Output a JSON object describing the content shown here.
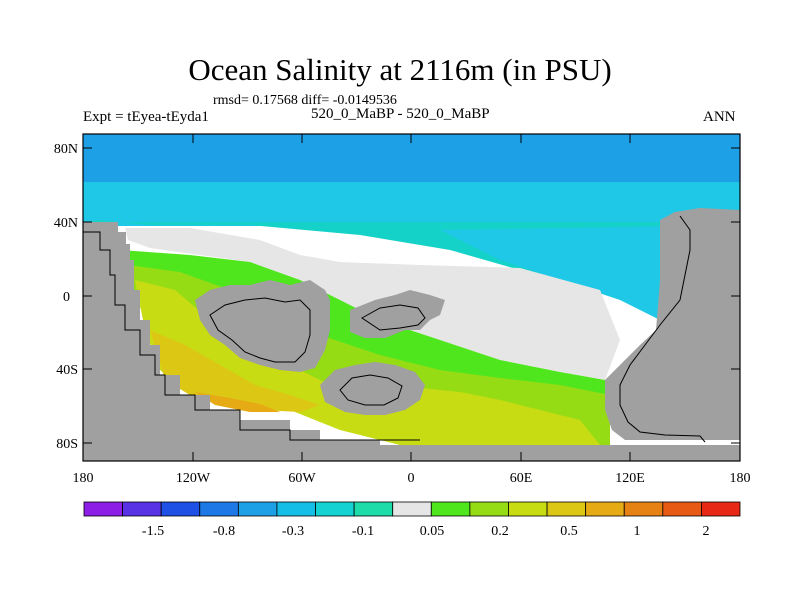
{
  "title": "Ocean Salinity at 2116m (in PSU)",
  "stats_line": "rmsd= 0.17568 diff= -0.0149536",
  "experiment_label": "Expt = tEyea-tEyda1",
  "case_label": "520_0_MaBP - 520_0_MaBP",
  "season_label": "ANN",
  "lat_ticks": [
    "80N",
    "40N",
    "0",
    "40S",
    "80S"
  ],
  "lon_ticks": [
    "180",
    "120W",
    "60W",
    "0",
    "60E",
    "120E",
    "180"
  ],
  "colorbar": {
    "colors": [
      "#8c1ee6",
      "#5a32e6",
      "#1e50e6",
      "#1e78e6",
      "#1ea0e6",
      "#14bee6",
      "#14d2d2",
      "#1edcaa",
      "#e6e6e6",
      "#50e61e",
      "#96dc14",
      "#c8dc14",
      "#dcc814",
      "#e6aa14",
      "#e68214",
      "#e65a14",
      "#e62814"
    ],
    "labels": [
      "-1.5",
      "-0.8",
      "-0.3",
      "-0.1",
      "0.05",
      "0.2",
      "0.5",
      "1",
      "2"
    ]
  },
  "colors": {
    "land": "#a0a0a0",
    "ocean_cyan": "#1ec8e6",
    "ocean_blue": "#1ea0e6",
    "teal": "#14d2c8",
    "neutral": "#e6e6e6",
    "green": "#50e61e",
    "light_green": "#96dc14",
    "yellow_green": "#c8dc14",
    "yellow": "#dcc814",
    "orange": "#e6aa14"
  }
}
